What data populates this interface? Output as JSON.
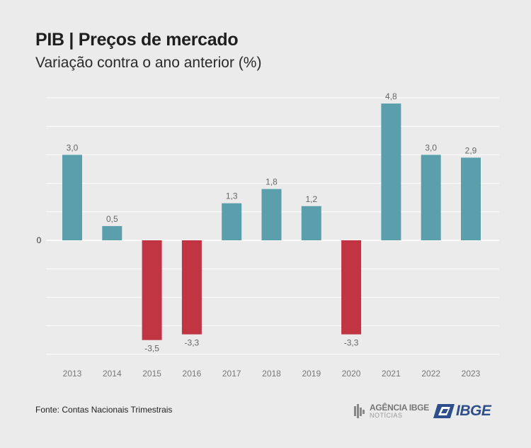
{
  "header": {
    "title": "PIB | Preços de mercado",
    "subtitle": "Variação contra o ano anterior (%)"
  },
  "footer": {
    "source": "Fonte: Contas Nacionais Trimestrais",
    "agencia_line1": "AGÊNCIA IBGE",
    "agencia_line2": "NOTÍCIAS",
    "ibge_logo": "IBGE"
  },
  "colors": {
    "positive": "#5b9fad",
    "negative": "#c13442",
    "background": "#ebebeb",
    "grid": "#ffffff"
  },
  "chart_data": {
    "type": "bar",
    "categories": [
      "2013",
      "2014",
      "2015",
      "2016",
      "2017",
      "2018",
      "2019",
      "2020",
      "2021",
      "2022",
      "2023"
    ],
    "values": [
      3.0,
      0.5,
      -3.5,
      -3.3,
      1.3,
      1.8,
      1.2,
      -3.3,
      4.8,
      3.0,
      2.9
    ],
    "data_labels": [
      "3,0",
      "0,5",
      "-3,5",
      "-3,3",
      "1,3",
      "1,8",
      "1,2",
      "-3,3",
      "4,8",
      "3,0",
      "2,9"
    ],
    "title": "PIB | Preços de mercado",
    "subtitle": "Variação contra o ano anterior (%)",
    "xlabel": "",
    "ylabel": "",
    "y_tick_labels": [
      "0"
    ],
    "ylim": [
      -4,
      5
    ],
    "grid": true,
    "legend": false
  }
}
